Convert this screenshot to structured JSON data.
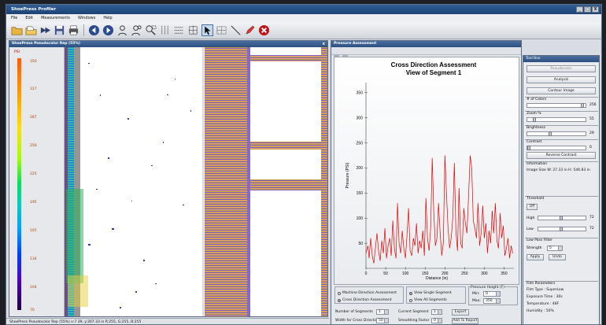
{
  "app": {
    "title": "ShoePress Profiler",
    "window_controls": [
      "_",
      "□",
      "X"
    ]
  },
  "menu": [
    "File",
    "Edit",
    "Measurements",
    "Windows",
    "Help"
  ],
  "toolbar": {
    "icons": [
      "open-folder-icon",
      "open-file-icon",
      "forward-icon",
      "save-icon",
      "print-icon",
      "back-arrow-icon",
      "forward-arrow-icon",
      "person-icon",
      "person-zoom-icon",
      "zoom-rect-icon",
      "column-profile-icon",
      "row-profile-icon",
      "cross-profile-icon",
      "pointer-icon",
      "grid-select-icon",
      "line-tool-icon",
      "pen-tool-icon",
      "close-red-icon"
    ]
  },
  "left_window": {
    "title": "ShoePress Pseudocolor Rep (55%)",
    "close": "x",
    "scale_unit": "PSI",
    "scale_labels": [
      "350",
      "317",
      "287",
      "256",
      "225",
      "195",
      "165",
      "134",
      "104",
      "70"
    ]
  },
  "right_window": {
    "title": "Pressure Assessment",
    "controls": {
      "machine_direction": "Machine Direction Assessment",
      "cross_direction": "Cross Direction Assessment",
      "view_single": "View Single Segment",
      "view_all": "View All Segments",
      "pressure_height_label": "Pressure Height (F)",
      "min_label": "Min:",
      "min_value": "0",
      "max_label": "Max:",
      "max_value": "350",
      "num_segments_label": "Number of Segments",
      "num_segments_value": "1",
      "current_segment_label": "Current Segment",
      "current_segment_value": "1",
      "width_label": "Width for Cross Direction:",
      "width_value": "50",
      "smoothing_label": "Smoothing Factor",
      "smoothing_value": "0",
      "export": "Export",
      "add_to_report": "Add To Report"
    }
  },
  "chart_data": {
    "type": "line",
    "title": "Cross Direction Assessment",
    "subtitle": "View of Segment 1",
    "xlabel": "Distance (in)",
    "ylabel": "Pressure (PSI)",
    "xlim": [
      0,
      375
    ],
    "ylim": [
      0,
      370
    ],
    "xticks": [
      0,
      50,
      100,
      150,
      200,
      250,
      300,
      350
    ],
    "yticks": [
      50,
      100,
      150,
      200,
      250,
      300,
      350
    ],
    "color": "#e00000",
    "series": [
      {
        "x": [
          0,
          5,
          8,
          12,
          16,
          20,
          24,
          28,
          32,
          36,
          40,
          44,
          48,
          52,
          56,
          60,
          64,
          68,
          72,
          76,
          80,
          84,
          88,
          92,
          96,
          100,
          104,
          108,
          112,
          116,
          120,
          124,
          128,
          132,
          136,
          140,
          144,
          148,
          152,
          156,
          160,
          164,
          168,
          172,
          176,
          180,
          184,
          188,
          192,
          196,
          200,
          204,
          208,
          212,
          216,
          220,
          224,
          228,
          232,
          236,
          240,
          244,
          248,
          252,
          256,
          260,
          264,
          268,
          272,
          276,
          280,
          284,
          288,
          292,
          296,
          300,
          304,
          308,
          312,
          316,
          320,
          324,
          328,
          332,
          336,
          340,
          344,
          348,
          352,
          356,
          360,
          364,
          368,
          372
        ],
        "y": [
          30,
          45,
          20,
          60,
          25,
          10,
          40,
          70,
          35,
          15,
          55,
          30,
          80,
          20,
          45,
          60,
          25,
          95,
          40,
          20,
          130,
          50,
          30,
          75,
          40,
          20,
          65,
          120,
          35,
          25,
          60,
          45,
          90,
          30,
          55,
          40,
          75,
          25,
          140,
          60,
          35,
          80,
          220,
          110,
          45,
          60,
          130,
          70,
          25,
          50,
          225,
          150,
          80,
          40,
          60,
          100,
          210,
          75,
          35,
          160,
          50,
          40,
          120,
          90,
          70,
          140,
          225,
          200,
          95,
          80,
          60,
          130,
          45,
          70,
          125,
          60,
          90,
          30,
          75,
          50,
          115,
          70,
          130,
          55,
          40,
          110,
          60,
          85,
          25,
          40,
          60,
          20,
          45,
          30
        ]
      }
    ]
  },
  "toolbox": {
    "title": "Tool Box",
    "pseudocolor": "Pseudocolor",
    "analysis": "Analysis",
    "contour": "Contour Image",
    "colors_label": "# of Colors",
    "colors_value": "256",
    "colors_level": 1.0,
    "zoom_label": "Zoom %",
    "zoom_value": "55",
    "zoom_level": 0.1,
    "brightness_label": "Brightness",
    "brightness_value": "29",
    "brightness_level": 0.4,
    "contrast_label": "Contrast",
    "contrast_value": "0",
    "contrast_level": 0.0,
    "reverse_contrast": "Reverse Contrast",
    "information_label": "Information",
    "image_size": "Image Size W: 27.33 in H: 546.83 in",
    "threshold_label": "Threshold",
    "threshold_off": "Off",
    "high_label": "High",
    "high_value": "72",
    "high_level": 0.5,
    "low_label": "Low",
    "low_value": "72",
    "low_level": 0.5,
    "low_pass_label": "Low Pass Filter",
    "strength_label": "Strength",
    "strength_value": "5",
    "apply": "Apply",
    "undo": "Undo",
    "film_label": "Film Parameters",
    "film_type": "Film Type : SuperLow",
    "exposure": "Exposure Time : 30s",
    "temperature": "Temperature : 48F",
    "humidity": "Humidity : 50%"
  },
  "status": "ShoePress Pseudocolor Rep (55%)   x:7.39, y:307.33 in   R:255, G:255, B:255"
}
